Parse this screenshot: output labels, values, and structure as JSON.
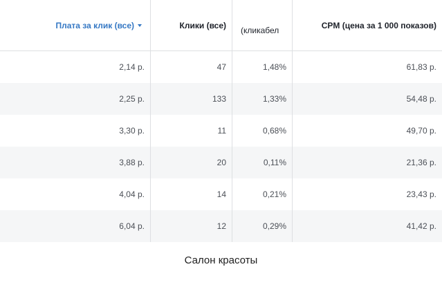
{
  "table": {
    "headers": {
      "cpc": "Плата за клик (все)",
      "clicks": "Клики (все)",
      "ctr": "(кликабел",
      "cpm": "CPM (цена за 1 000 показов)"
    },
    "sort_icon": "chevron-down-icon",
    "rows": [
      {
        "cpc": "2,14 р.",
        "clicks": "47",
        "ctr": "1,48%",
        "cpm": "61,83 р."
      },
      {
        "cpc": "2,25 р.",
        "clicks": "133",
        "ctr": "1,33%",
        "cpm": "54,48 р."
      },
      {
        "cpc": "3,30 р.",
        "clicks": "11",
        "ctr": "0,68%",
        "cpm": "49,70 р."
      },
      {
        "cpc": "3,88 р.",
        "clicks": "20",
        "ctr": "0,11%",
        "cpm": "21,36 р."
      },
      {
        "cpc": "4,04 р.",
        "clicks": "14",
        "ctr": "0,21%",
        "cpm": "23,43 р."
      },
      {
        "cpc": "6,04 р.",
        "clicks": "12",
        "ctr": "0,29%",
        "cpm": "41,42 р."
      }
    ]
  },
  "caption": "Салон красоты",
  "colors": {
    "accent": "#3578c4",
    "row_stripe": "#f5f6f7",
    "border": "#dddfe2"
  }
}
